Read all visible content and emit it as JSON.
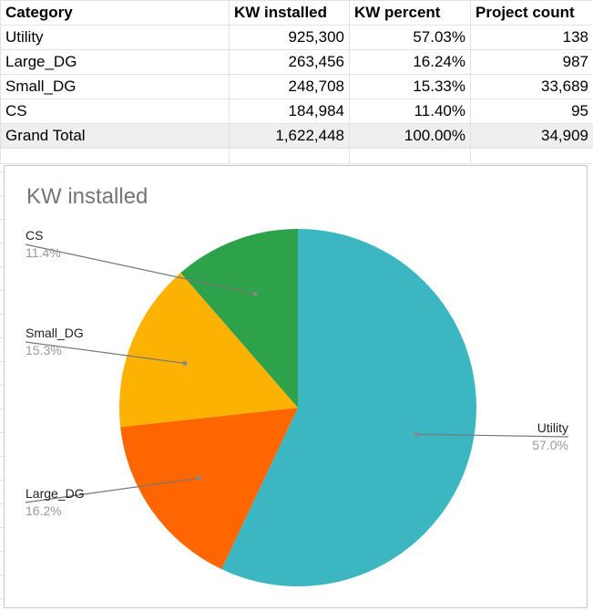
{
  "table": {
    "headers": [
      "Category",
      "KW installed",
      "KW percent",
      "Project count"
    ],
    "rows": [
      [
        "Utility",
        "925,300",
        "57.03%",
        "138"
      ],
      [
        "Large_DG",
        "263,456",
        "16.24%",
        "987"
      ],
      [
        "Small_DG",
        "248,708",
        "15.33%",
        "33,689"
      ],
      [
        "CS",
        "184,984",
        "11.40%",
        "95"
      ]
    ],
    "total": [
      "Grand Total",
      "1,622,448",
      "100.00%",
      "34,909"
    ]
  },
  "chart_data": {
    "type": "pie",
    "title": "KW installed",
    "slices": [
      {
        "label": "Utility",
        "value": 925300,
        "pct_label": "57.0%",
        "color": "#3cb6c0"
      },
      {
        "label": "Large_DG",
        "value": 263456,
        "pct_label": "16.2%",
        "color": "#ff6600"
      },
      {
        "label": "Small_DG",
        "value": 248708,
        "pct_label": "15.3%",
        "color": "#fbb202"
      },
      {
        "label": "CS",
        "value": 184984,
        "pct_label": "11.4%",
        "color": "#2ea24b"
      }
    ],
    "legend": "callout labels"
  }
}
